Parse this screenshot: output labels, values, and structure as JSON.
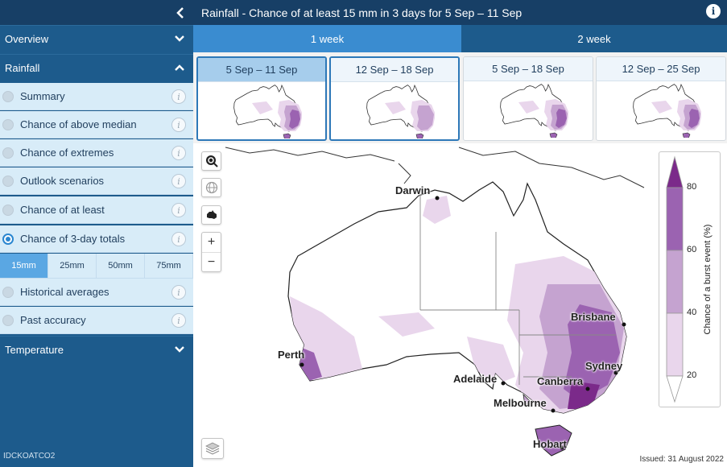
{
  "header": {
    "title": "Rainfall - Chance of at least 15 mm in 3 days for 5 Sep – 11 Sep"
  },
  "sidebar": {
    "overview": "Overview",
    "rainfall": "Rainfall",
    "temperature": "Temperature",
    "items": [
      {
        "label": "Summary"
      },
      {
        "label": "Chance of above median"
      },
      {
        "label": "Chance of extremes"
      },
      {
        "label": "Outlook scenarios"
      },
      {
        "label": "Chance of at least"
      },
      {
        "label": "Chance of 3-day totals"
      },
      {
        "label": "Historical averages"
      },
      {
        "label": "Past accuracy"
      }
    ],
    "mm_options": [
      "15mm",
      "25mm",
      "50mm",
      "75mm"
    ],
    "product_code": "IDCKOATCO2"
  },
  "tabs": [
    "1 week",
    "2 week"
  ],
  "thumbnails": [
    "5 Sep – 11 Sep",
    "12 Sep – 18 Sep",
    "5 Sep – 18 Sep",
    "12 Sep – 25 Sep"
  ],
  "map": {
    "cities": [
      "Darwin",
      "Brisbane",
      "Perth",
      "Sydney",
      "Adelaide",
      "Canberra",
      "Melbourne",
      "Hobart"
    ],
    "issued": "Issued: 31 August 2022"
  },
  "legend": {
    "title": "Chance of a burst event (%)",
    "ticks": [
      "80",
      "60",
      "40",
      "20"
    ],
    "colors": [
      "#7b2a8a",
      "#9b63b1",
      "#c5a3d0",
      "#e9d6ec",
      "#ffffff"
    ]
  }
}
